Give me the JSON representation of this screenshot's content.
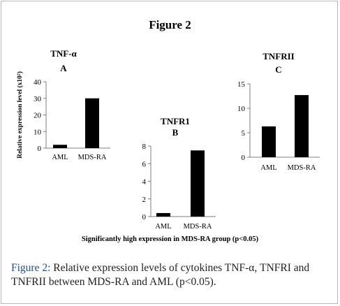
{
  "figure_title": "Figure 2",
  "note": "Significantly high expression in MDS-RA group (p<0.05)",
  "caption": {
    "label": "Figure 2:",
    "text": " Relative expression levels of cytokines TNF-α, TNFRI and TNFRII between MDS-RA and AML (p<0.05)."
  },
  "chart_data": [
    {
      "type": "bar",
      "title": "TNF-α",
      "subtitle": "A",
      "ylabel": "Relative expression level (x10²)",
      "categories": [
        "AML",
        "MDS-RA"
      ],
      "values": [
        2,
        30
      ],
      "ylim": [
        0,
        40
      ],
      "yticks": [
        0,
        10,
        20,
        30,
        40
      ],
      "grid": false,
      "bar_color": "#000000"
    },
    {
      "type": "bar",
      "title": "TNFR1",
      "subtitle": "B",
      "ylabel": "",
      "categories": [
        "AML",
        "MDS-RA"
      ],
      "values": [
        0.4,
        7.5
      ],
      "ylim": [
        0,
        8
      ],
      "yticks": [
        0,
        2,
        4,
        6,
        8
      ],
      "grid": false,
      "bar_color": "#000000"
    },
    {
      "type": "bar",
      "title": "TNFRII",
      "subtitle": "C",
      "ylabel": "",
      "categories": [
        "AML",
        "MDS-RA"
      ],
      "values": [
        6.3,
        12.7
      ],
      "ylim": [
        0,
        15
      ],
      "yticks": [
        0,
        5,
        10,
        15
      ],
      "grid": false,
      "bar_color": "#000000"
    }
  ]
}
